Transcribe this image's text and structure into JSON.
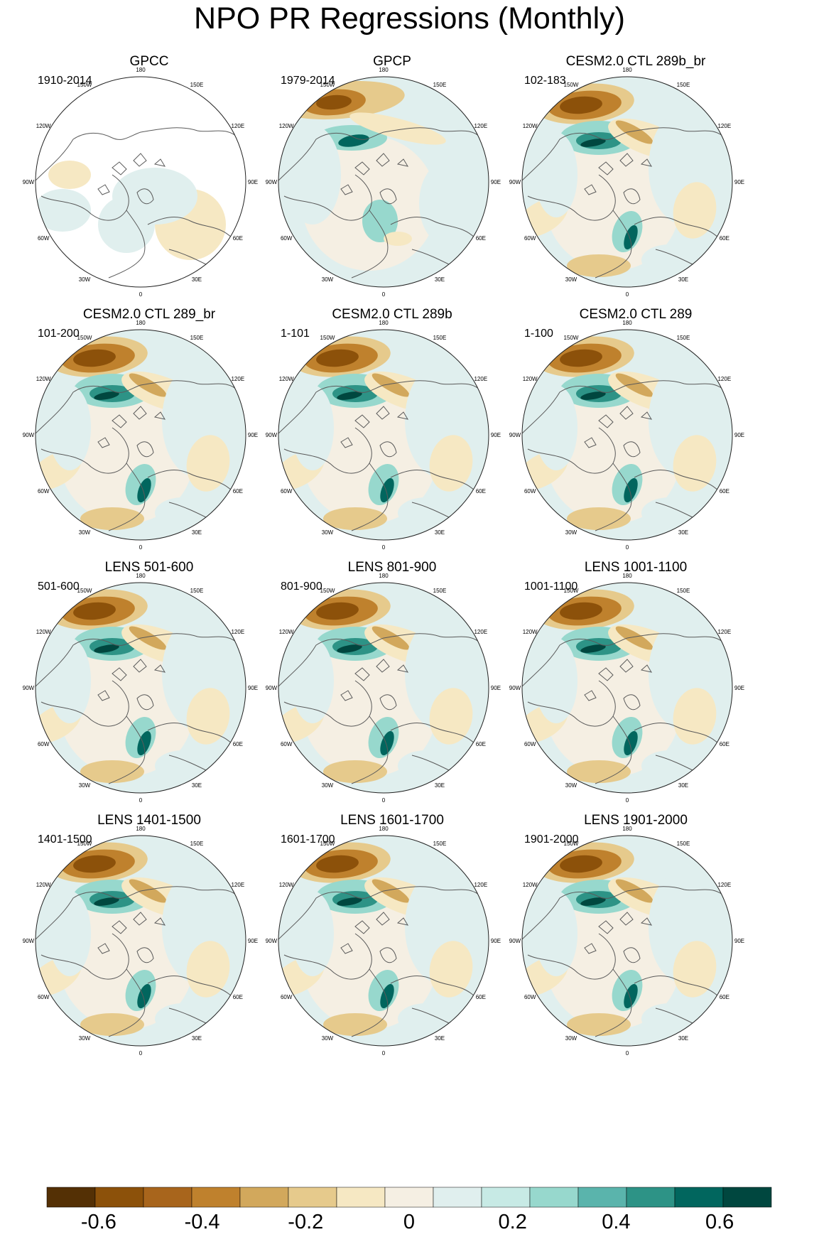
{
  "chart_data": {
    "type": "polar-map-panels",
    "title": "NPO PR Regressions (Monthly)",
    "projection": "north polar stereographic",
    "longitude_labels": [
      "180",
      "150E",
      "120E",
      "90E",
      "60E",
      "30E",
      "0",
      "30W",
      "60W",
      "90W",
      "120W",
      "150W"
    ],
    "panels": [
      {
        "title": "GPCC",
        "period": "1910-2014",
        "land_only": true
      },
      {
        "title": "GPCP",
        "period": "1979-2014",
        "land_only": false
      },
      {
        "title": "CESM2.0 CTL 289b_br",
        "period": "102-183",
        "land_only": false
      },
      {
        "title": "CESM2.0 CTL 289_br",
        "period": "101-200",
        "land_only": false
      },
      {
        "title": "CESM2.0 CTL 289b",
        "period": "1-101",
        "land_only": false
      },
      {
        "title": "CESM2.0 CTL 289",
        "period": "1-100",
        "land_only": false
      },
      {
        "title": "LENS 501-600",
        "period": "501-600",
        "land_only": false
      },
      {
        "title": "LENS 801-900",
        "period": "801-900",
        "land_only": false
      },
      {
        "title": "LENS 1001-1100",
        "period": "1001-1100",
        "land_only": false
      },
      {
        "title": "LENS 1401-1500",
        "period": "1401-1500",
        "land_only": false
      },
      {
        "title": "LENS 1601-1700",
        "period": "1601-1700",
        "land_only": false
      },
      {
        "title": "LENS 1901-2000",
        "period": "1901-2000",
        "land_only": false
      }
    ],
    "colorbar": {
      "colors": [
        "#543005",
        "#8c510a",
        "#a8651c",
        "#bf812d",
        "#d2a85c",
        "#e6ca8c",
        "#f6e8c3",
        "#f5efe3",
        "#e0efee",
        "#c7eae5",
        "#97d8cd",
        "#5ab4ac",
        "#2d9386",
        "#01665e",
        "#00473f"
      ],
      "tick_labels": [
        "-0.6",
        "-0.4",
        "-0.2",
        "0",
        "0.2",
        "0.4",
        "0.6"
      ],
      "tick_values": [
        -0.6,
        -0.4,
        -0.2,
        0,
        0.2,
        0.4,
        0.6
      ],
      "range": [
        -0.7,
        0.7
      ]
    }
  }
}
